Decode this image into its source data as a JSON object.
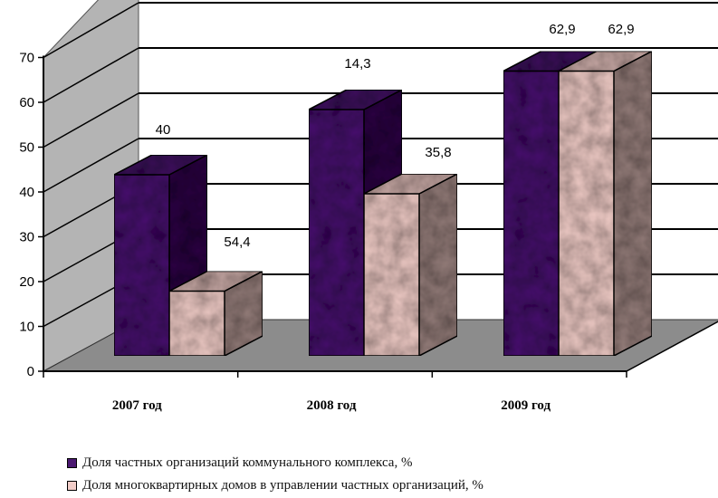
{
  "chart_data": {
    "type": "bar",
    "categories": [
      "2007 год",
      "2008 год",
      "2009 год"
    ],
    "series": [
      {
        "name": "Доля частных организаций коммунального комплекса, %",
        "values": [
          40,
          54.4,
          62.9
        ],
        "labels": [
          "40",
          "54,4",
          "62,9"
        ]
      },
      {
        "name": "Доля многоквартирных домов в управлении частных организаций, %",
        "values": [
          14.3,
          35.8,
          62.9
        ],
        "labels": [
          "14,3",
          "35,8",
          "62,9"
        ]
      }
    ],
    "y_ticks": [
      "0",
      "10",
      "20",
      "30",
      "40",
      "50",
      "60",
      "70"
    ],
    "ylim": [
      0,
      70
    ],
    "grid": true,
    "legend_position": "bottom",
    "three_d": true
  },
  "colors": {
    "series1": "#4a1870",
    "series2": "#f2cdc8",
    "wall": "#b4b4b4",
    "floor": "#8c8c8c"
  }
}
